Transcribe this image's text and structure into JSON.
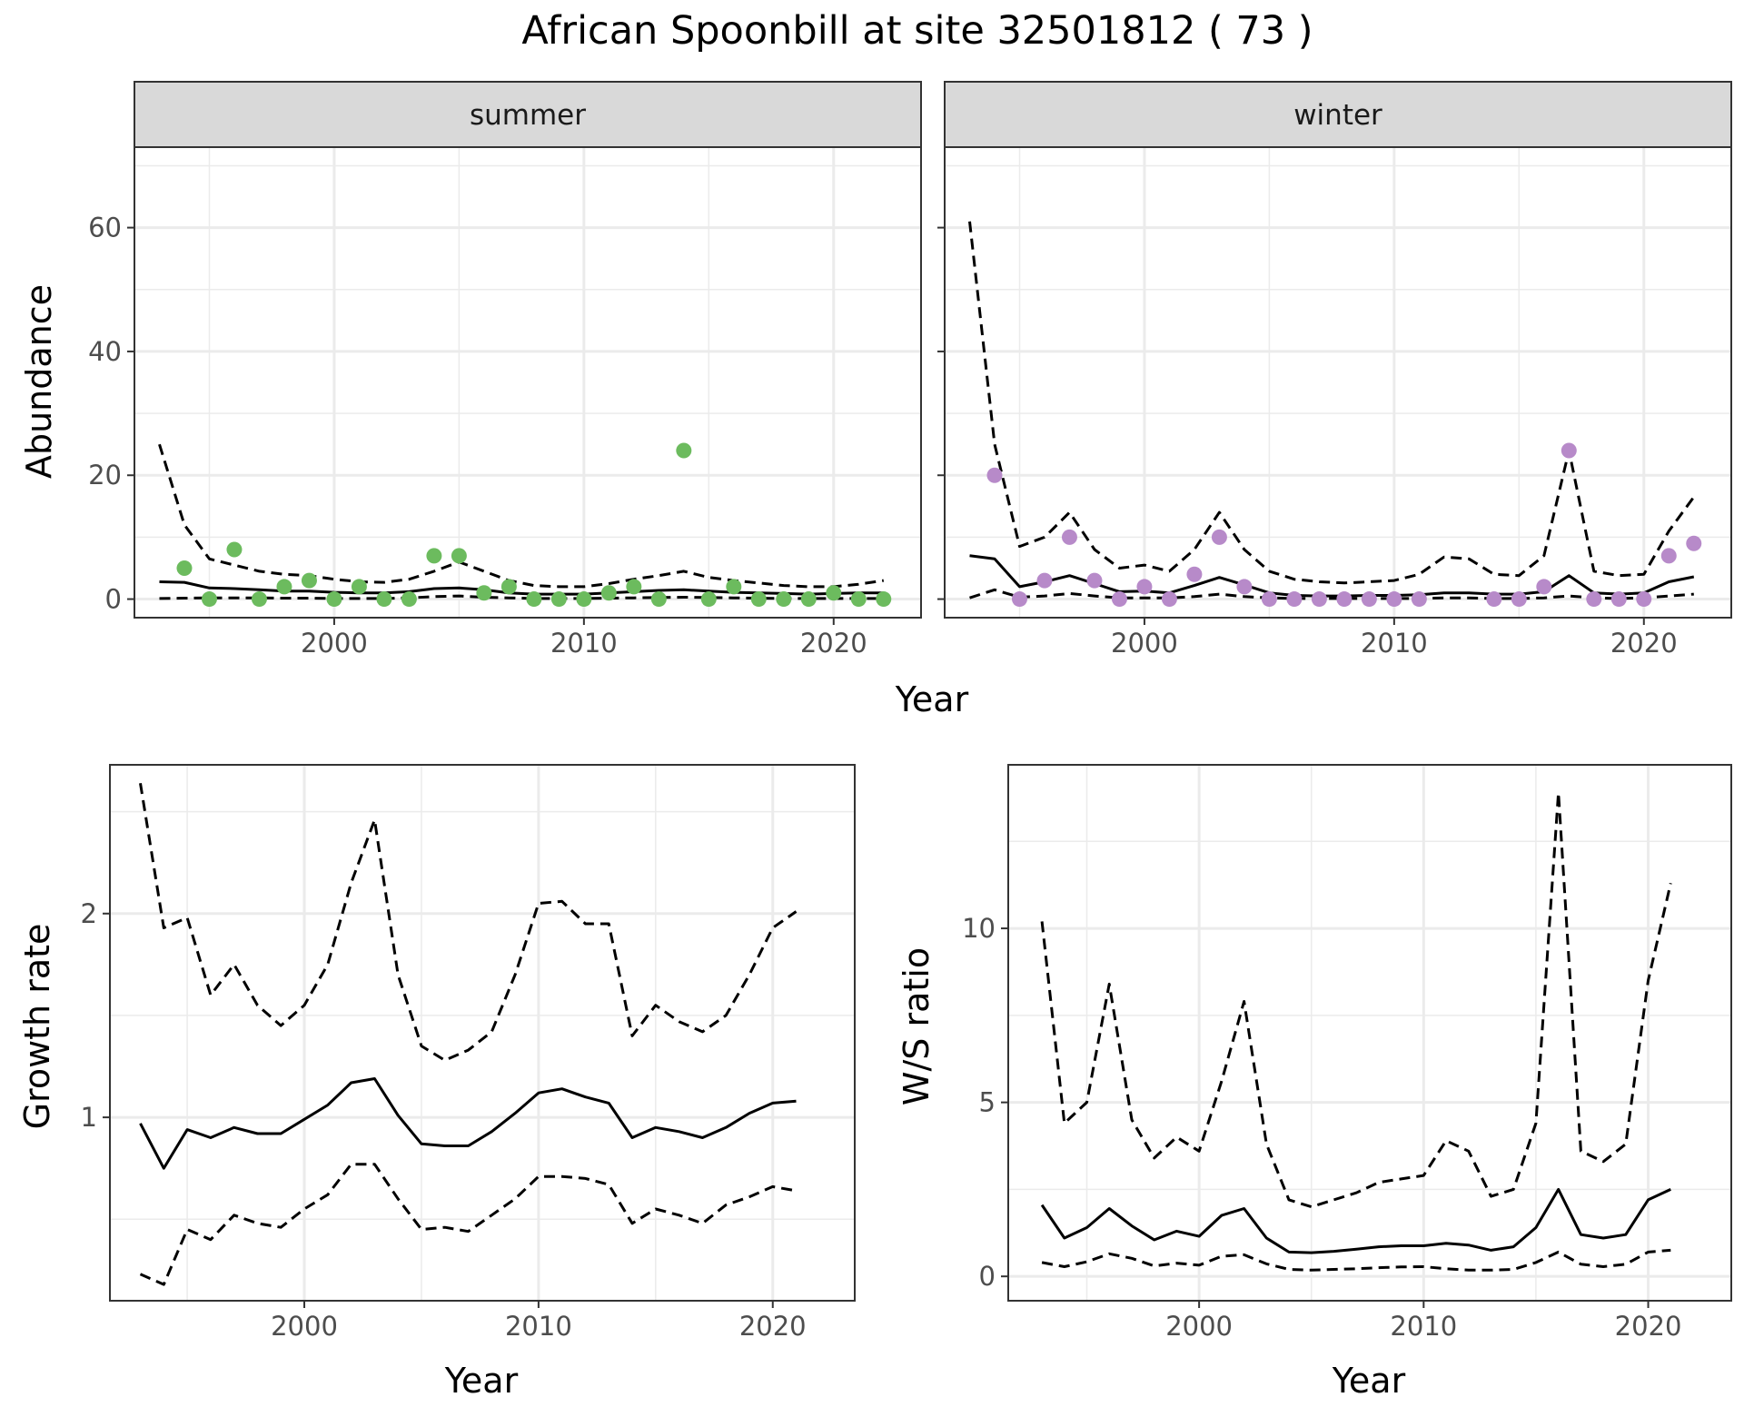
{
  "title": "African Spoonbill at site 32501812 ( 73 )",
  "colors": {
    "summer_points": "#6cbb5e",
    "winter_points": "#b78ac9",
    "lines": "#000000",
    "grid": "#ebebeb",
    "strip": "#d9d9d9"
  },
  "chart_data": [
    {
      "type": "scatter",
      "panel": "summer",
      "facet_label": "summer",
      "ylabel": "Abundance",
      "xlabel": "Year",
      "xlim": [
        1992,
        2023.5
      ],
      "ylim": [
        -3,
        73
      ],
      "x_ticks": [
        2000,
        2010,
        2020
      ],
      "y_ticks": [
        0,
        20,
        40,
        60
      ],
      "points": {
        "x": [
          1994,
          1995,
          1996,
          1997,
          1998,
          1999,
          2000,
          2001,
          2002,
          2003,
          2004,
          2005,
          2006,
          2007,
          2008,
          2009,
          2010,
          2011,
          2012,
          2013,
          2014,
          2015,
          2016,
          2017,
          2018,
          2019,
          2020,
          2021,
          2022
        ],
        "y": [
          5,
          0,
          8,
          0,
          2,
          3,
          0,
          2,
          0,
          0,
          7,
          7,
          1,
          2,
          0,
          0,
          0,
          1,
          2,
          0,
          24,
          0,
          2,
          0,
          0,
          0,
          1,
          0,
          0
        ]
      },
      "series": [
        {
          "style": "solid",
          "x": [
            1993,
            1994,
            1995,
            1996,
            1997,
            1998,
            1999,
            2000,
            2001,
            2002,
            2003,
            2004,
            2005,
            2006,
            2007,
            2008,
            2009,
            2010,
            2011,
            2012,
            2013,
            2014,
            2015,
            2016,
            2017,
            2018,
            2019,
            2020,
            2021,
            2022
          ],
          "y": [
            2.8,
            2.7,
            1.8,
            1.7,
            1.5,
            1.3,
            1.3,
            1.1,
            1.0,
            1.0,
            1.2,
            1.7,
            1.8,
            1.5,
            1.0,
            0.8,
            0.8,
            0.8,
            1.0,
            1.2,
            1.4,
            1.5,
            1.3,
            1.1,
            1.0,
            0.9,
            0.8,
            0.9,
            1.0,
            1.0
          ]
        },
        {
          "style": "dashed",
          "x": [
            1993,
            1994,
            1995,
            1996,
            1997,
            1998,
            1999,
            2000,
            2001,
            2002,
            2003,
            2004,
            2005,
            2006,
            2007,
            2008,
            2009,
            2010,
            2011,
            2012,
            2013,
            2014,
            2015,
            2016,
            2017,
            2018,
            2019,
            2020,
            2021,
            2022
          ],
          "y": [
            25,
            12,
            6.5,
            5.5,
            4.5,
            4.0,
            3.8,
            3.2,
            2.8,
            2.7,
            3.2,
            4.5,
            6.0,
            4.5,
            3.0,
            2.2,
            2.0,
            2.0,
            2.5,
            3.2,
            3.8,
            4.5,
            3.5,
            3.0,
            2.6,
            2.2,
            2.0,
            2.0,
            2.4,
            3.0
          ]
        },
        {
          "style": "dashed",
          "x": [
            1993,
            1994,
            1995,
            1996,
            1997,
            1998,
            1999,
            2000,
            2001,
            2002,
            2003,
            2004,
            2005,
            2006,
            2007,
            2008,
            2009,
            2010,
            2011,
            2012,
            2013,
            2014,
            2015,
            2016,
            2017,
            2018,
            2019,
            2020,
            2021,
            2022
          ],
          "y": [
            0.1,
            0.15,
            0.2,
            0.2,
            0.2,
            0.15,
            0.15,
            0.1,
            0.1,
            0.1,
            0.2,
            0.4,
            0.5,
            0.3,
            0.2,
            0.1,
            0.1,
            0.1,
            0.15,
            0.2,
            0.25,
            0.3,
            0.25,
            0.2,
            0.15,
            0.1,
            0.1,
            0.1,
            0.1,
            0.1
          ]
        }
      ]
    },
    {
      "type": "scatter",
      "panel": "winter",
      "facet_label": "winter",
      "xlabel": "Year",
      "xlim": [
        1992,
        2023.5
      ],
      "ylim": [
        -3,
        73
      ],
      "x_ticks": [
        2000,
        2010,
        2020
      ],
      "points": {
        "x": [
          1994,
          1995,
          1996,
          1997,
          1998,
          1999,
          2000,
          2001,
          2002,
          2003,
          2004,
          2005,
          2006,
          2007,
          2008,
          2009,
          2010,
          2011,
          2014,
          2015,
          2016,
          2017,
          2018,
          2019,
          2020,
          2021,
          2022
        ],
        "y": [
          20,
          0,
          3,
          10,
          3,
          0,
          2,
          0,
          4,
          10,
          2,
          0,
          0,
          0,
          0,
          0,
          0,
          0,
          0,
          0,
          2,
          24,
          0,
          0,
          0,
          7,
          9
        ]
      },
      "series": [
        {
          "style": "solid",
          "x": [
            1993,
            1994,
            1995,
            1996,
            1997,
            1998,
            1999,
            2000,
            2001,
            2002,
            2003,
            2004,
            2005,
            2006,
            2007,
            2008,
            2009,
            2010,
            2011,
            2012,
            2013,
            2014,
            2015,
            2016,
            2017,
            2018,
            2019,
            2020,
            2021,
            2022
          ],
          "y": [
            7.0,
            6.5,
            2.0,
            2.8,
            3.8,
            2.5,
            1.2,
            1.3,
            1.0,
            2.2,
            3.5,
            2.3,
            1.0,
            0.6,
            0.5,
            0.5,
            0.6,
            0.6,
            0.7,
            1.0,
            1.0,
            0.8,
            0.8,
            1.2,
            3.8,
            1.0,
            0.8,
            1.0,
            2.8,
            3.6
          ]
        },
        {
          "style": "dashed",
          "x": [
            1993,
            1994,
            1995,
            1996,
            1997,
            1998,
            1999,
            2000,
            2001,
            2002,
            2003,
            2004,
            2005,
            2006,
            2007,
            2008,
            2009,
            2010,
            2011,
            2012,
            2013,
            2014,
            2015,
            2016,
            2017,
            2018,
            2019,
            2020,
            2021,
            2022
          ],
          "y": [
            61,
            25,
            8.5,
            10,
            14,
            8,
            5,
            5.5,
            4.5,
            8,
            14,
            8,
            4.5,
            3.2,
            2.8,
            2.6,
            2.8,
            3.0,
            4.0,
            6.8,
            6.5,
            4.0,
            3.8,
            7.0,
            24,
            4.5,
            3.8,
            4.0,
            11,
            16.5
          ]
        },
        {
          "style": "dashed",
          "x": [
            1993,
            1994,
            1995,
            1996,
            1997,
            1998,
            1999,
            2000,
            2001,
            2002,
            2003,
            2004,
            2005,
            2006,
            2007,
            2008,
            2009,
            2010,
            2011,
            2012,
            2013,
            2014,
            2015,
            2016,
            2017,
            2018,
            2019,
            2020,
            2021,
            2022
          ],
          "y": [
            0.2,
            1.5,
            0.3,
            0.5,
            0.9,
            0.5,
            0.2,
            0.2,
            0.2,
            0.4,
            0.8,
            0.4,
            0.2,
            0.1,
            0.1,
            0.1,
            0.1,
            0.1,
            0.1,
            0.2,
            0.2,
            0.1,
            0.1,
            0.2,
            0.5,
            0.2,
            0.1,
            0.2,
            0.5,
            0.8
          ]
        }
      ]
    },
    {
      "type": "line",
      "panel": "growth",
      "ylabel": "Growth rate",
      "xlabel": "Year",
      "xlim": [
        1991.7,
        2023.5
      ],
      "ylim": [
        0.1,
        2.73
      ],
      "x_ticks": [
        2000,
        2010,
        2020
      ],
      "y_ticks": [
        1,
        2
      ],
      "series": [
        {
          "style": "solid",
          "x": [
            1993,
            1994,
            1995,
            1996,
            1997,
            1998,
            1999,
            2000,
            2001,
            2002,
            2003,
            2004,
            2005,
            2006,
            2007,
            2008,
            2009,
            2010,
            2011,
            2012,
            2013,
            2014,
            2015,
            2016,
            2017,
            2018,
            2019,
            2020,
            2021
          ],
          "y": [
            0.97,
            0.75,
            0.94,
            0.9,
            0.95,
            0.92,
            0.92,
            0.99,
            1.06,
            1.17,
            1.19,
            1.01,
            0.87,
            0.86,
            0.86,
            0.93,
            1.02,
            1.12,
            1.14,
            1.1,
            1.07,
            0.9,
            0.95,
            0.93,
            0.9,
            0.95,
            1.02,
            1.07,
            1.08
          ]
        },
        {
          "style": "dashed",
          "x": [
            1993,
            1994,
            1995,
            1996,
            1997,
            1998,
            1999,
            2000,
            2001,
            2002,
            2003,
            2004,
            2005,
            2006,
            2007,
            2008,
            2009,
            2010,
            2011,
            2012,
            2013,
            2014,
            2015,
            2016,
            2017,
            2018,
            2019,
            2020,
            2021
          ],
          "y": [
            2.64,
            1.93,
            1.98,
            1.6,
            1.75,
            1.55,
            1.45,
            1.55,
            1.75,
            2.15,
            2.46,
            1.7,
            1.35,
            1.28,
            1.33,
            1.42,
            1.7,
            2.05,
            2.06,
            1.95,
            1.95,
            1.4,
            1.55,
            1.47,
            1.42,
            1.5,
            1.7,
            1.93,
            2.01
          ]
        },
        {
          "style": "dashed",
          "x": [
            1993,
            1994,
            1995,
            1996,
            1997,
            1998,
            1999,
            2000,
            2001,
            2002,
            2003,
            2004,
            2005,
            2006,
            2007,
            2008,
            2009,
            2010,
            2011,
            2012,
            2013,
            2014,
            2015,
            2016,
            2017,
            2018,
            2019,
            2020,
            2021
          ],
          "y": [
            0.23,
            0.18,
            0.45,
            0.4,
            0.52,
            0.48,
            0.46,
            0.55,
            0.62,
            0.77,
            0.77,
            0.6,
            0.45,
            0.46,
            0.44,
            0.52,
            0.6,
            0.71,
            0.71,
            0.7,
            0.67,
            0.48,
            0.55,
            0.52,
            0.48,
            0.57,
            0.61,
            0.66,
            0.64
          ]
        }
      ]
    },
    {
      "type": "line",
      "panel": "ratio",
      "ylabel": "W/S ratio",
      "xlabel": "Year",
      "xlim": [
        1991.5,
        2023.7
      ],
      "ylim": [
        -0.7,
        14.7
      ],
      "x_ticks": [
        2000,
        2010,
        2020
      ],
      "y_ticks": [
        0,
        5,
        10
      ],
      "series": [
        {
          "style": "solid",
          "x": [
            1993,
            1994,
            1995,
            1996,
            1997,
            1998,
            1999,
            2000,
            2001,
            2002,
            2003,
            2004,
            2005,
            2006,
            2007,
            2008,
            2009,
            2010,
            2011,
            2012,
            2013,
            2014,
            2015,
            2016,
            2017,
            2018,
            2019,
            2020,
            2021
          ],
          "y": [
            2.05,
            1.1,
            1.4,
            1.95,
            1.45,
            1.05,
            1.3,
            1.15,
            1.75,
            1.95,
            1.1,
            0.7,
            0.68,
            0.72,
            0.78,
            0.85,
            0.88,
            0.88,
            0.95,
            0.9,
            0.75,
            0.85,
            1.4,
            2.5,
            1.2,
            1.1,
            1.2,
            2.2,
            2.5
          ]
        },
        {
          "style": "dashed",
          "x": [
            1993,
            1994,
            1995,
            1996,
            1997,
            1998,
            1999,
            2000,
            2001,
            2002,
            2003,
            2004,
            2005,
            2006,
            2007,
            2008,
            2009,
            2010,
            2011,
            2012,
            2013,
            2014,
            2015,
            2016,
            2017,
            2018,
            2019,
            2020,
            2021
          ],
          "y": [
            10.2,
            4.4,
            5.0,
            8.4,
            4.5,
            3.4,
            4.0,
            3.6,
            5.6,
            7.9,
            3.8,
            2.2,
            2.0,
            2.2,
            2.4,
            2.7,
            2.8,
            2.9,
            3.9,
            3.6,
            2.3,
            2.5,
            4.4,
            13.9,
            3.6,
            3.3,
            3.8,
            8.5,
            11.3
          ]
        },
        {
          "style": "dashed",
          "x": [
            1993,
            1994,
            1995,
            1996,
            1997,
            1998,
            1999,
            2000,
            2001,
            2002,
            2003,
            2004,
            2005,
            2006,
            2007,
            2008,
            2009,
            2010,
            2011,
            2012,
            2013,
            2014,
            2015,
            2016,
            2017,
            2018,
            2019,
            2020,
            2021
          ],
          "y": [
            0.4,
            0.28,
            0.42,
            0.65,
            0.52,
            0.3,
            0.38,
            0.32,
            0.58,
            0.62,
            0.36,
            0.2,
            0.18,
            0.2,
            0.22,
            0.25,
            0.27,
            0.28,
            0.22,
            0.18,
            0.18,
            0.2,
            0.4,
            0.7,
            0.35,
            0.28,
            0.35,
            0.7,
            0.75
          ]
        }
      ]
    }
  ]
}
